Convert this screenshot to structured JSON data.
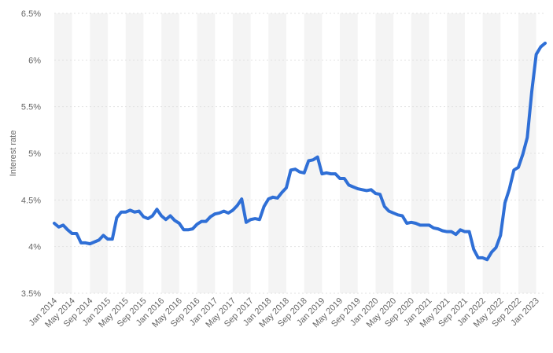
{
  "chart_data": {
    "type": "line",
    "title": "",
    "xlabel": "",
    "ylabel": "Interest rate",
    "ylim": [
      3.5,
      6.5
    ],
    "y_ticks": [
      "3.5%",
      "4%",
      "4.5%",
      "5%",
      "5.5%",
      "6%",
      "6.5%"
    ],
    "x_tick_labels": [
      "Jan 2014",
      "May 2014",
      "Sep 2014",
      "Jan 2015",
      "May 2015",
      "Sep 2015",
      "Jan 2016",
      "May 2016",
      "Sep 2016",
      "Jan 2017",
      "May 2017",
      "Sep 2017",
      "Jan 2018",
      "May 2018",
      "Sep 2018",
      "Jan 2019",
      "May 2019",
      "Sep 2019",
      "Jan 2020",
      "May 2020",
      "Sep 2020",
      "Jan 2021",
      "May 2021",
      "Sep 2021",
      "Jan 2022",
      "May 2022",
      "Sep 2022",
      "Jan 2023"
    ],
    "line_color": "#2f6fd6",
    "grid": "alternating vertical bands",
    "series": [
      {
        "values": [
          4.25,
          4.21,
          4.23,
          4.18,
          4.14,
          4.14,
          4.04,
          4.04,
          4.03,
          4.05,
          4.07,
          4.12,
          4.08,
          4.08,
          4.31,
          4.37,
          4.37,
          4.39,
          4.37,
          4.38,
          4.32,
          4.3,
          4.33,
          4.4,
          4.33,
          4.29,
          4.33,
          4.28,
          4.25,
          4.18,
          4.18,
          4.19,
          4.24,
          4.27,
          4.27,
          4.32,
          4.35,
          4.36,
          4.38,
          4.36,
          4.39,
          4.44,
          4.51,
          4.26,
          4.29,
          4.3,
          4.29,
          4.43,
          4.51,
          4.53,
          4.52,
          4.58,
          4.63,
          4.82,
          4.83,
          4.8,
          4.79,
          4.92,
          4.93,
          4.96,
          4.78,
          4.79,
          4.78,
          4.78,
          4.73,
          4.73,
          4.66,
          4.64,
          4.62,
          4.61,
          4.6,
          4.61,
          4.57,
          4.56,
          4.43,
          4.38,
          4.36,
          4.34,
          4.33,
          4.25,
          4.26,
          4.25,
          4.23,
          4.23,
          4.23,
          4.2,
          4.19,
          4.17,
          4.16,
          4.16,
          4.13,
          4.18,
          4.16,
          4.16,
          3.97,
          3.88,
          3.88,
          3.86,
          3.94,
          3.99,
          4.12,
          4.47,
          4.62,
          4.82,
          4.85,
          4.99,
          5.17,
          5.66,
          6.06,
          6.14,
          6.18
        ]
      }
    ]
  }
}
